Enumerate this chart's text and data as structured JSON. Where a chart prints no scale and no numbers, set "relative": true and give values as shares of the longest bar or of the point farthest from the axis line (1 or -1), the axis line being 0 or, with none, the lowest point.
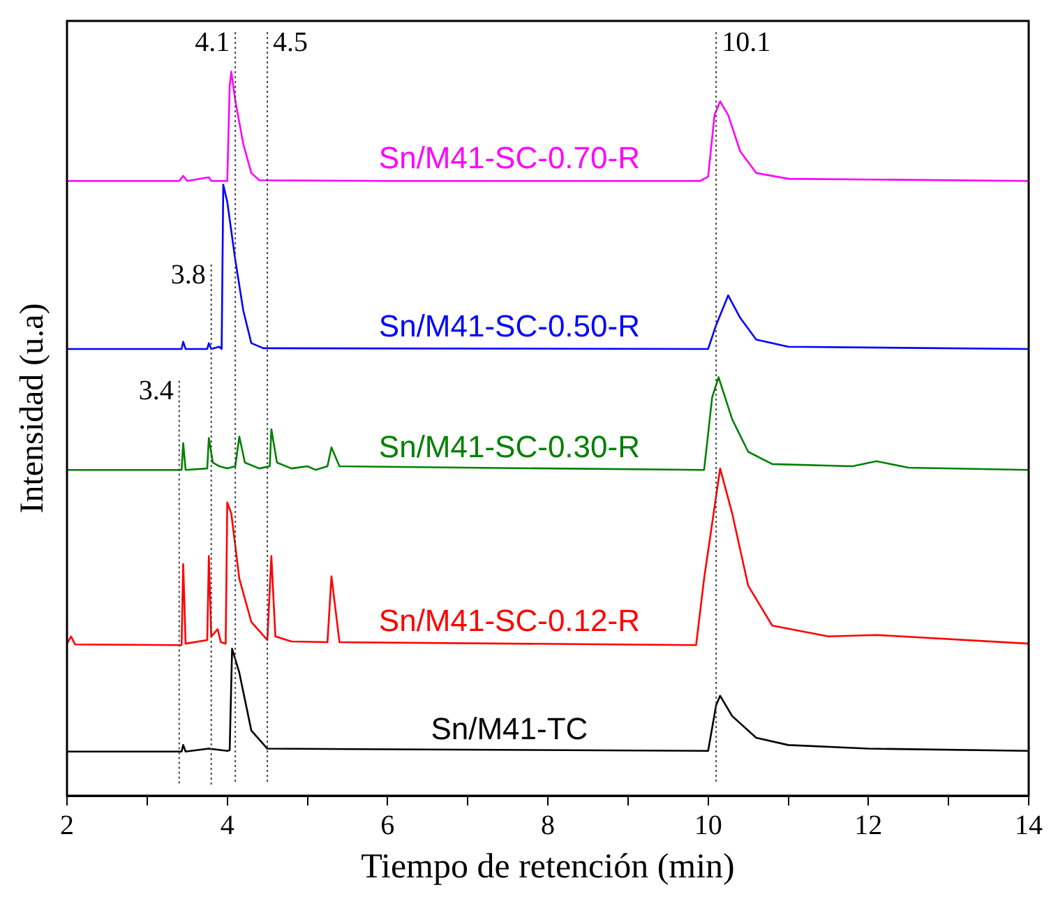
{
  "chart_data": {
    "type": "line",
    "xlabel": "Tiempo de retención (min)",
    "ylabel": "Intensidad (u.a)",
    "relative": true,
    "xlim": [
      2,
      14
    ],
    "xticks": [
      2,
      {
        "value": 3,
        "label": null
      },
      4,
      {
        "value": 5,
        "label": null
      },
      6,
      {
        "value": 7,
        "label": null
      },
      8,
      {
        "value": 9,
        "label": null
      },
      10,
      {
        "value": 11,
        "label": null
      },
      12,
      {
        "value": 13,
        "label": null
      },
      14
    ],
    "grid": false,
    "legend": false,
    "marker": "none",
    "line_style": "solid",
    "series": [
      {
        "name": "Sn/M41-SC-0.70-R",
        "color": "#ff00ff",
        "x": [
          2,
          3.4,
          3.45,
          3.5,
          3.77,
          3.8,
          4.0,
          4.03,
          4.05,
          4.1,
          4.2,
          4.3,
          4.4,
          6,
          9.9,
          10.0,
          10.08,
          10.15,
          10.25,
          10.4,
          10.6,
          11,
          14
        ],
        "values": [
          0.849,
          0.849,
          0.856,
          0.849,
          0.854,
          0.849,
          0.849,
          0.98,
          1.0,
          0.96,
          0.9,
          0.86,
          0.85,
          0.849,
          0.849,
          0.855,
          0.94,
          0.959,
          0.94,
          0.89,
          0.86,
          0.852,
          0.849
        ]
      },
      {
        "name": "Sn/M41-SC-0.50-R",
        "color": "#0000ff",
        "x": [
          2,
          3.43,
          3.45,
          3.48,
          3.75,
          3.77,
          3.8,
          3.9,
          3.93,
          3.95,
          4.0,
          4.1,
          4.2,
          4.3,
          4.45,
          10.0,
          10.1,
          10.25,
          10.4,
          10.6,
          11,
          14
        ],
        "values": [
          0.617,
          0.617,
          0.627,
          0.617,
          0.617,
          0.625,
          0.617,
          0.62,
          0.617,
          0.844,
          0.82,
          0.74,
          0.67,
          0.625,
          0.618,
          0.617,
          0.65,
          0.691,
          0.66,
          0.63,
          0.62,
          0.617
        ]
      },
      {
        "name": "Sn/M41-SC-0.30-R",
        "color": "#008000",
        "x": [
          2,
          3.43,
          3.45,
          3.48,
          3.75,
          3.77,
          3.82,
          3.9,
          4.0,
          4.1,
          4.15,
          4.22,
          4.4,
          4.53,
          4.55,
          4.62,
          4.8,
          5.0,
          5.1,
          5.25,
          5.3,
          5.4,
          7,
          9.95,
          10.05,
          10.13,
          10.3,
          10.5,
          10.8,
          11.8,
          12.1,
          12.5,
          14
        ],
        "values": [
          0.45,
          0.45,
          0.487,
          0.45,
          0.452,
          0.494,
          0.46,
          0.455,
          0.452,
          0.455,
          0.496,
          0.46,
          0.452,
          0.455,
          0.506,
          0.46,
          0.452,
          0.455,
          0.45,
          0.455,
          0.481,
          0.455,
          0.453,
          0.45,
          0.55,
          0.578,
          0.52,
          0.475,
          0.458,
          0.455,
          0.462,
          0.453,
          0.45
        ]
      },
      {
        "name": "Sn/M41-SC-0.12-R",
        "color": "#ff0000",
        "x": [
          2,
          2.05,
          2.1,
          3.43,
          3.45,
          3.48,
          3.75,
          3.77,
          3.8,
          3.88,
          3.92,
          3.98,
          4.0,
          4.05,
          4.15,
          4.3,
          4.5,
          4.55,
          4.6,
          4.8,
          5.25,
          5.3,
          5.4,
          9.85,
          9.95,
          10.15,
          10.3,
          10.5,
          10.8,
          11.5,
          12.1,
          14
        ],
        "values": [
          0.21,
          0.22,
          0.209,
          0.208,
          0.32,
          0.21,
          0.215,
          0.331,
          0.22,
          0.23,
          0.212,
          0.21,
          0.405,
          0.39,
          0.3,
          0.24,
          0.215,
          0.331,
          0.22,
          0.213,
          0.212,
          0.303,
          0.212,
          0.208,
          0.3,
          0.452,
          0.39,
          0.29,
          0.235,
          0.22,
          0.222,
          0.21
        ]
      },
      {
        "name": "Sn/M41-TC",
        "color": "#000000",
        "x": [
          2,
          3.43,
          3.45,
          3.48,
          3.77,
          4.0,
          4.03,
          4.06,
          4.15,
          4.3,
          4.5,
          10.0,
          10.1,
          10.15,
          10.3,
          10.6,
          11,
          12,
          14
        ],
        "values": [
          0.061,
          0.061,
          0.07,
          0.061,
          0.065,
          0.062,
          0.063,
          0.203,
          0.17,
          0.09,
          0.065,
          0.062,
          0.125,
          0.138,
          0.11,
          0.08,
          0.07,
          0.065,
          0.062
        ]
      }
    ],
    "ref_lines": [
      {
        "axis": "x",
        "value": 3.4,
        "label": "3.4",
        "color": "#444444",
        "line_style": "dotted"
      },
      {
        "axis": "x",
        "value": 3.8,
        "label": "3.8",
        "color": "#444444",
        "line_style": "dotted"
      },
      {
        "axis": "x",
        "value": 4.1,
        "label": "4.1",
        "color": "#444444",
        "line_style": "dotted"
      },
      {
        "axis": "x",
        "value": 4.5,
        "label": "4.5",
        "color": "#444444",
        "line_style": "dotted"
      },
      {
        "axis": "x",
        "value": 10.1,
        "label": "10.1",
        "color": "#444444",
        "line_style": "dotted"
      }
    ]
  }
}
